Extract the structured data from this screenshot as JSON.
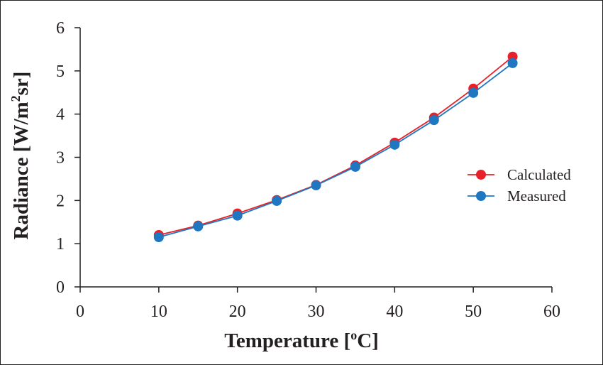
{
  "chart_data": {
    "type": "line",
    "title": "",
    "xlabel": "Temperature [",
    "xlabel_sup": "o",
    "xlabel_tail": "C]",
    "ylabel": "Radiance [W/m",
    "ylabel_sup": "2",
    "ylabel_tail": "sr]",
    "xlim": [
      0,
      60
    ],
    "ylim": [
      0,
      6
    ],
    "xticks": [
      "0",
      "10",
      "20",
      "30",
      "40",
      "50",
      "60"
    ],
    "yticks": [
      "0",
      "1",
      "2",
      "3",
      "4",
      "5",
      "6"
    ],
    "grid": false,
    "legend_position": "right",
    "x": [
      10,
      15,
      20,
      25,
      30,
      35,
      40,
      45,
      50,
      55
    ],
    "series": [
      {
        "name": "Calculated",
        "color": "#e8202a",
        "values": [
          1.2,
          1.42,
          1.7,
          2.01,
          2.36,
          2.81,
          3.34,
          3.92,
          4.59,
          5.33
        ]
      },
      {
        "name": "Measured",
        "color": "#1f77c2",
        "values": [
          1.15,
          1.4,
          1.65,
          1.99,
          2.35,
          2.78,
          3.29,
          3.86,
          4.49,
          5.18
        ]
      }
    ]
  }
}
